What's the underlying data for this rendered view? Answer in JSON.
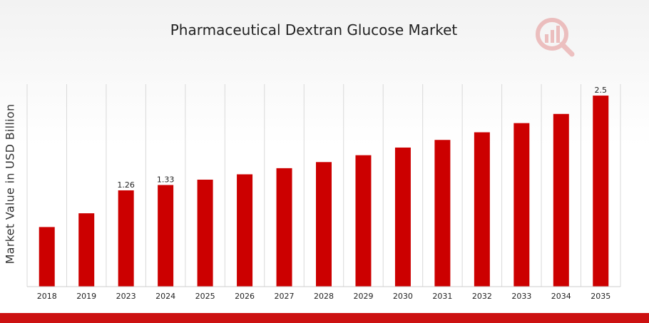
{
  "chart_data": {
    "type": "bar",
    "title": "Pharmaceutical Dextran Glucose Market",
    "xlabel": "",
    "ylabel": "Market Value in USD Billion",
    "categories": [
      "2018",
      "2019",
      "2023",
      "2024",
      "2025",
      "2026",
      "2027",
      "2028",
      "2029",
      "2030",
      "2031",
      "2032",
      "2033",
      "2034",
      "2035"
    ],
    "values": [
      0.78,
      0.96,
      1.26,
      1.33,
      1.4,
      1.47,
      1.55,
      1.63,
      1.72,
      1.82,
      1.92,
      2.02,
      2.14,
      2.26,
      2.5
    ],
    "data_labels": {
      "2023": "1.26",
      "2024": "1.33",
      "2035": "2.5"
    },
    "ylim": [
      0,
      2.65
    ],
    "grid": "vertical",
    "bar_color": "#cc0000",
    "legend": "none"
  },
  "colors": {
    "bar": "#cc0000",
    "accent_band": "#cc1111",
    "grid": "#d9d9d9",
    "text": "#222222"
  },
  "logo": {
    "icon": "market-research-logo-icon"
  }
}
